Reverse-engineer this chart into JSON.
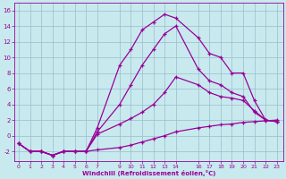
{
  "xlabel": "Windchill (Refroidissement éolien,°C)",
  "bg_color": "#c8eaee",
  "line_color": "#990099",
  "grid_color": "#99bbcc",
  "xtick_vals": [
    0,
    1,
    2,
    3,
    4,
    5,
    6,
    7,
    9,
    10,
    11,
    12,
    13,
    14,
    16,
    17,
    18,
    19,
    20,
    21,
    22,
    23
  ],
  "xtick_labels": [
    "0",
    "1",
    "2",
    "3",
    "4",
    "5",
    "6",
    "7",
    "9",
    "10",
    "11",
    "12",
    "13",
    "14",
    "16",
    "17",
    "18",
    "19",
    "20",
    "21",
    "22",
    "23"
  ],
  "yticks": [
    -2,
    0,
    2,
    4,
    6,
    8,
    10,
    12,
    14,
    16
  ],
  "xlim": [
    -0.4,
    23.6
  ],
  "ylim": [
    -3.2,
    17.0
  ],
  "lines": [
    {
      "x": [
        0,
        1,
        2,
        3,
        4,
        5,
        6,
        7,
        9,
        10,
        11,
        12,
        13,
        14,
        16,
        17,
        18,
        19,
        20,
        21,
        22,
        23
      ],
      "y": [
        -1,
        -2,
        -2,
        -2.5,
        -2,
        -2,
        -2,
        1.0,
        9.0,
        11.0,
        13.5,
        14.5,
        15.5,
        15.0,
        12.5,
        10.5,
        10.0,
        8.0,
        8.0,
        4.5,
        2.0,
        1.8
      ]
    },
    {
      "x": [
        0,
        1,
        2,
        3,
        4,
        5,
        6,
        7,
        9,
        10,
        11,
        12,
        13,
        14,
        16,
        17,
        18,
        19,
        20,
        21,
        22,
        23
      ],
      "y": [
        -1,
        -2,
        -2,
        -2.5,
        -2,
        -2,
        -2,
        0.5,
        4.0,
        6.5,
        9.0,
        11.0,
        13.0,
        14.0,
        8.5,
        7.0,
        6.5,
        5.5,
        5.0,
        3.0,
        2.0,
        1.8
      ]
    },
    {
      "x": [
        0,
        1,
        2,
        3,
        4,
        5,
        6,
        7,
        9,
        10,
        11,
        12,
        13,
        14,
        16,
        17,
        18,
        19,
        20,
        21,
        22,
        23
      ],
      "y": [
        -1,
        -2,
        -2,
        -2.5,
        -2,
        -2,
        -2,
        0.2,
        1.5,
        2.2,
        3.0,
        4.0,
        5.5,
        7.5,
        6.5,
        5.5,
        5.0,
        4.8,
        4.5,
        3.2,
        2.0,
        1.8
      ]
    },
    {
      "x": [
        0,
        1,
        2,
        3,
        4,
        5,
        6,
        7,
        9,
        10,
        11,
        12,
        13,
        14,
        16,
        17,
        18,
        19,
        20,
        21,
        22,
        23
      ],
      "y": [
        -1,
        -2,
        -2,
        -2.5,
        -2,
        -2,
        -2,
        -1.8,
        -1.5,
        -1.2,
        -0.8,
        -0.4,
        0.0,
        0.5,
        1.0,
        1.2,
        1.4,
        1.5,
        1.7,
        1.8,
        1.9,
        2.0
      ]
    }
  ]
}
